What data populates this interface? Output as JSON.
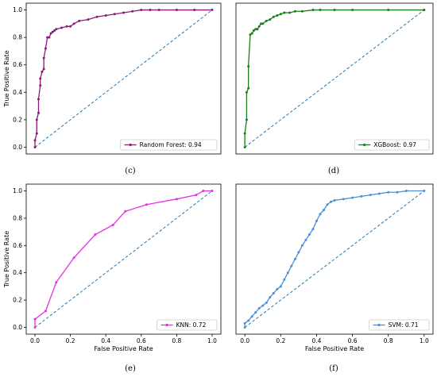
{
  "figure": {
    "x_ticks": [
      "0.0",
      "0.2",
      "0.4",
      "0.6",
      "0.8",
      "1.0"
    ],
    "y_ticks": [
      "0.0",
      "0.2",
      "0.4",
      "0.6",
      "0.8",
      "1.0"
    ],
    "reference_line_color": "#1f77b4"
  },
  "chart_data": [
    {
      "type": "line",
      "caption": "(c)",
      "ylabel": "True Positive Rate",
      "xlabel": "",
      "xlim": [
        0,
        1
      ],
      "ylim": [
        0,
        1
      ],
      "show_x_ticks": false,
      "show_y_ticks": true,
      "color": "#8b1a7a",
      "legend": {
        "text": "Random Forest: 0.94",
        "position": "lower-right"
      },
      "series": [
        {
          "name": "Random Forest",
          "x": [
            0,
            0,
            0.01,
            0.01,
            0.02,
            0.02,
            0.03,
            0.03,
            0.04,
            0.05,
            0.05,
            0.06,
            0.07,
            0.08,
            0.09,
            0.1,
            0.11,
            0.12,
            0.15,
            0.18,
            0.2,
            0.22,
            0.25,
            0.3,
            0.35,
            0.4,
            0.45,
            0.5,
            0.55,
            0.6,
            0.65,
            0.7,
            0.8,
            0.9,
            1.0
          ],
          "y": [
            0,
            0.05,
            0.1,
            0.2,
            0.25,
            0.35,
            0.45,
            0.5,
            0.55,
            0.57,
            0.65,
            0.72,
            0.8,
            0.8,
            0.83,
            0.84,
            0.85,
            0.86,
            0.87,
            0.88,
            0.88,
            0.9,
            0.92,
            0.93,
            0.95,
            0.96,
            0.97,
            0.98,
            0.99,
            1.0,
            1.0,
            1.0,
            1.0,
            1.0,
            1.0
          ]
        }
      ]
    },
    {
      "type": "line",
      "caption": "(d)",
      "ylabel": "",
      "xlabel": "",
      "xlim": [
        0,
        1
      ],
      "ylim": [
        0,
        1
      ],
      "show_x_ticks": false,
      "show_y_ticks": false,
      "color": "#1a7f1a",
      "legend": {
        "text": "XGBoost: 0.97",
        "position": "lower-right"
      },
      "series": [
        {
          "name": "XGBoost",
          "x": [
            0,
            0,
            0.01,
            0.01,
            0.02,
            0.02,
            0.03,
            0.04,
            0.05,
            0.06,
            0.07,
            0.08,
            0.09,
            0.1,
            0.12,
            0.14,
            0.16,
            0.18,
            0.2,
            0.22,
            0.25,
            0.28,
            0.32,
            0.38,
            0.42,
            0.5,
            0.6,
            0.8,
            1.0
          ],
          "y": [
            0,
            0.1,
            0.2,
            0.4,
            0.43,
            0.59,
            0.82,
            0.83,
            0.85,
            0.86,
            0.86,
            0.88,
            0.9,
            0.9,
            0.92,
            0.93,
            0.95,
            0.96,
            0.97,
            0.98,
            0.98,
            0.99,
            0.99,
            1.0,
            1.0,
            1.0,
            1.0,
            1.0,
            1.0
          ]
        }
      ]
    },
    {
      "type": "line",
      "caption": "(e)",
      "ylabel": "True Positive Rate",
      "xlabel": "False Positive Rate",
      "xlim": [
        0,
        1
      ],
      "ylim": [
        0,
        1
      ],
      "show_x_ticks": true,
      "show_y_ticks": true,
      "color": "#e62ee6",
      "legend": {
        "text": "KNN: 0.72",
        "position": "lower-right"
      },
      "series": [
        {
          "name": "KNN",
          "x": [
            0,
            0,
            0.06,
            0.12,
            0.22,
            0.34,
            0.44,
            0.51,
            0.63,
            0.8,
            0.91,
            0.95,
            1.0
          ],
          "y": [
            0,
            0.06,
            0.12,
            0.33,
            0.51,
            0.68,
            0.75,
            0.85,
            0.9,
            0.94,
            0.97,
            1.0,
            1.0
          ]
        }
      ]
    },
    {
      "type": "line",
      "caption": "(f)",
      "ylabel": "",
      "xlabel": "False Positive Rate",
      "xlim": [
        0,
        1
      ],
      "ylim": [
        0,
        1
      ],
      "show_x_ticks": true,
      "show_y_ticks": false,
      "color": "#4a90d9",
      "legend": {
        "text": "SVM: 0.71",
        "position": "lower-right"
      },
      "series": [
        {
          "name": "SVM",
          "x": [
            0,
            0,
            0.02,
            0.04,
            0.06,
            0.08,
            0.1,
            0.12,
            0.14,
            0.16,
            0.18,
            0.2,
            0.22,
            0.24,
            0.26,
            0.28,
            0.3,
            0.32,
            0.34,
            0.36,
            0.38,
            0.4,
            0.42,
            0.44,
            0.46,
            0.48,
            0.5,
            0.55,
            0.6,
            0.65,
            0.7,
            0.75,
            0.8,
            0.85,
            0.9,
            1.0
          ],
          "y": [
            0,
            0.03,
            0.05,
            0.08,
            0.11,
            0.14,
            0.16,
            0.18,
            0.22,
            0.25,
            0.28,
            0.3,
            0.35,
            0.4,
            0.45,
            0.5,
            0.55,
            0.6,
            0.64,
            0.68,
            0.72,
            0.78,
            0.83,
            0.86,
            0.9,
            0.92,
            0.93,
            0.94,
            0.95,
            0.96,
            0.97,
            0.98,
            0.99,
            0.99,
            1.0,
            1.0
          ]
        }
      ]
    }
  ]
}
